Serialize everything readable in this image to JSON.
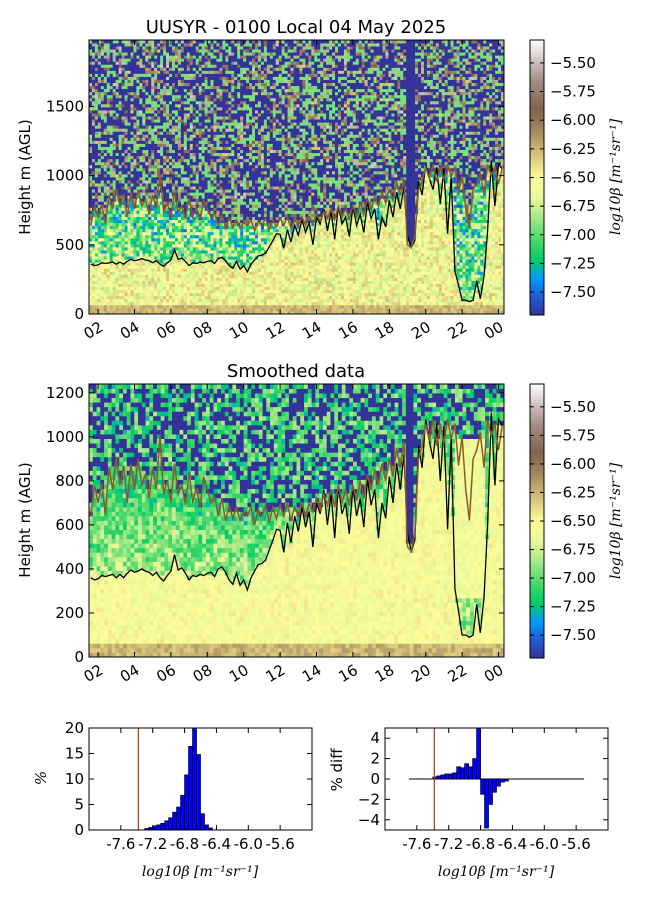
{
  "chart_data": [
    {
      "type": "heatmap",
      "title": "UUSYR - 0100 Local 04 May 2025",
      "ylabel": "Height m (AGL)",
      "xlabel": "",
      "xlim": [
        1.5,
        24.3
      ],
      "ylim": [
        0,
        1980
      ],
      "x_ticks": [
        "02",
        "04",
        "06",
        "08",
        "10",
        "12",
        "14",
        "16",
        "18",
        "20",
        "22",
        "00"
      ],
      "y_ticks": [
        0,
        500,
        1000,
        1500
      ],
      "colorbar": {
        "label": "log10β [m⁻¹sr⁻¹]",
        "ticks": [
          -5.5,
          -5.75,
          -6.0,
          -6.25,
          -6.5,
          -6.75,
          -7.0,
          -7.25,
          -7.5
        ],
        "tick_labels": [
          "−5.50",
          "−5.75",
          "−6.00",
          "−6.25",
          "−6.50",
          "−6.75",
          "−7.00",
          "−7.25",
          "−7.50"
        ],
        "range": [
          -7.7,
          -5.3
        ],
        "colormap": "terrain"
      },
      "series": [
        {
          "color": "#000000",
          "points": [
            [
              1.6,
              360
            ],
            [
              1.8,
              350
            ],
            [
              2.0,
              355
            ],
            [
              2.2,
              370
            ],
            [
              2.4,
              365
            ],
            [
              2.6,
              370
            ],
            [
              2.8,
              375
            ],
            [
              3.0,
              360
            ],
            [
              3.2,
              375
            ],
            [
              3.4,
              360
            ],
            [
              3.6,
              380
            ],
            [
              3.8,
              395
            ],
            [
              4.0,
              385
            ],
            [
              4.2,
              390
            ],
            [
              4.4,
              400
            ],
            [
              4.6,
              390
            ],
            [
              4.8,
              385
            ],
            [
              5.0,
              370
            ],
            [
              5.2,
              385
            ],
            [
              5.4,
              360
            ],
            [
              5.6,
              345
            ],
            [
              5.8,
              370
            ],
            [
              6.0,
              390
            ],
            [
              6.2,
              465
            ],
            [
              6.4,
              395
            ],
            [
              6.6,
              405
            ],
            [
              6.8,
              380
            ],
            [
              7.0,
              350
            ],
            [
              7.2,
              370
            ],
            [
              7.4,
              365
            ],
            [
              7.6,
              375
            ],
            [
              7.8,
              370
            ],
            [
              8.0,
              380
            ],
            [
              8.2,
              385
            ],
            [
              8.4,
              365
            ],
            [
              8.6,
              400
            ],
            [
              8.8,
              410
            ],
            [
              9.0,
              385
            ],
            [
              9.2,
              350
            ],
            [
              9.4,
              330
            ],
            [
              9.6,
              380
            ],
            [
              9.8,
              325
            ],
            [
              10.0,
              350
            ],
            [
              10.2,
              305
            ],
            [
              10.4,
              360
            ],
            [
              10.6,
              390
            ],
            [
              10.8,
              420
            ],
            [
              11.0,
              425
            ],
            [
              11.2,
              440
            ],
            [
              11.4,
              485
            ],
            [
              11.6,
              530
            ],
            [
              11.8,
              580
            ],
            [
              12.0,
              575
            ],
            [
              12.2,
              475
            ],
            [
              12.4,
              610
            ],
            [
              12.6,
              520
            ],
            [
              12.8,
              640
            ],
            [
              13.0,
              570
            ],
            [
              13.2,
              680
            ],
            [
              13.4,
              590
            ],
            [
              13.6,
              660
            ],
            [
              13.8,
              500
            ],
            [
              14.0,
              700
            ],
            [
              14.2,
              650
            ],
            [
              14.4,
              760
            ],
            [
              14.6,
              600
            ],
            [
              14.8,
              740
            ],
            [
              15.0,
              540
            ],
            [
              15.2,
              780
            ],
            [
              15.4,
              650
            ],
            [
              15.6,
              700
            ],
            [
              15.8,
              560
            ],
            [
              16.0,
              780
            ],
            [
              16.2,
              640
            ],
            [
              16.4,
              720
            ],
            [
              16.6,
              590
            ],
            [
              16.8,
              810
            ],
            [
              17.0,
              690
            ],
            [
              17.2,
              760
            ],
            [
              17.4,
              540
            ],
            [
              17.6,
              700
            ],
            [
              17.8,
              630
            ],
            [
              18.0,
              820
            ],
            [
              18.2,
              700
            ],
            [
              18.4,
              880
            ],
            [
              18.6,
              760
            ],
            [
              18.8,
              920
            ],
            [
              19.0,
              560
            ],
            [
              19.2,
              480
            ],
            [
              19.4,
              530
            ],
            [
              19.6,
              960
            ],
            [
              19.8,
              860
            ],
            [
              20.0,
              1080
            ],
            [
              20.2,
              980
            ],
            [
              20.4,
              900
            ],
            [
              20.6,
              1060
            ],
            [
              20.8,
              800
            ],
            [
              21.0,
              1050
            ],
            [
              21.2,
              580
            ],
            [
              21.4,
              1000
            ],
            [
              21.6,
              310
            ],
            [
              21.8,
              210
            ],
            [
              22.0,
              100
            ],
            [
              22.2,
              100
            ],
            [
              22.4,
              90
            ],
            [
              22.6,
              100
            ],
            [
              22.8,
              240
            ],
            [
              23.0,
              110
            ],
            [
              23.2,
              270
            ],
            [
              23.4,
              600
            ],
            [
              23.6,
              1110
            ],
            [
              23.8,
              780
            ],
            [
              24.0,
              1080
            ],
            [
              24.2,
              1050
            ]
          ]
        },
        {
          "color": "#8b5a2b",
          "points": [
            [
              1.6,
              640
            ],
            [
              1.8,
              780
            ],
            [
              2.0,
              700
            ],
            [
              2.2,
              790
            ],
            [
              2.4,
              650
            ],
            [
              2.6,
              860
            ],
            [
              2.8,
              760
            ],
            [
              3.0,
              910
            ],
            [
              3.2,
              780
            ],
            [
              3.4,
              870
            ],
            [
              3.6,
              700
            ],
            [
              3.8,
              880
            ],
            [
              4.0,
              760
            ],
            [
              4.2,
              900
            ],
            [
              4.4,
              780
            ],
            [
              4.6,
              830
            ],
            [
              4.8,
              720
            ],
            [
              5.0,
              860
            ],
            [
              5.2,
              760
            ],
            [
              5.4,
              1010
            ],
            [
              5.6,
              740
            ],
            [
              5.8,
              800
            ],
            [
              6.0,
              700
            ],
            [
              6.2,
              880
            ],
            [
              6.4,
              740
            ],
            [
              6.6,
              780
            ],
            [
              6.8,
              690
            ],
            [
              7.0,
              840
            ],
            [
              7.2,
              700
            ],
            [
              7.4,
              770
            ],
            [
              7.6,
              680
            ],
            [
              7.8,
              820
            ],
            [
              8.0,
              760
            ],
            [
              8.2,
              700
            ],
            [
              8.4,
              730
            ],
            [
              8.6,
              640
            ],
            [
              8.8,
              720
            ],
            [
              9.0,
              620
            ],
            [
              9.2,
              690
            ],
            [
              9.4,
              630
            ],
            [
              9.6,
              680
            ],
            [
              9.8,
              620
            ],
            [
              10.0,
              660
            ],
            [
              10.2,
              640
            ],
            [
              10.4,
              680
            ],
            [
              10.6,
              600
            ],
            [
              10.8,
              670
            ],
            [
              11.0,
              640
            ],
            [
              11.2,
              690
            ],
            [
              11.4,
              610
            ],
            [
              11.6,
              680
            ],
            [
              11.8,
              630
            ],
            [
              12.0,
              690
            ],
            [
              12.2,
              640
            ],
            [
              12.4,
              700
            ],
            [
              12.6,
              620
            ],
            [
              12.8,
              680
            ],
            [
              13.0,
              640
            ],
            [
              13.2,
              700
            ],
            [
              13.4,
              640
            ],
            [
              13.6,
              700
            ],
            [
              13.8,
              660
            ],
            [
              14.0,
              720
            ],
            [
              14.2,
              670
            ],
            [
              14.4,
              740
            ],
            [
              14.6,
              690
            ],
            [
              14.8,
              760
            ],
            [
              15.0,
              680
            ],
            [
              15.2,
              780
            ],
            [
              15.4,
              700
            ],
            [
              15.6,
              760
            ],
            [
              15.8,
              690
            ],
            [
              16.0,
              780
            ],
            [
              16.2,
              710
            ],
            [
              16.4,
              800
            ],
            [
              16.6,
              720
            ],
            [
              16.8,
              830
            ],
            [
              17.0,
              760
            ],
            [
              17.2,
              850
            ],
            [
              17.4,
              780
            ],
            [
              17.6,
              880
            ],
            [
              17.8,
              800
            ],
            [
              18.0,
              900
            ],
            [
              18.2,
              820
            ],
            [
              18.4,
              950
            ],
            [
              18.6,
              860
            ],
            [
              18.8,
              980
            ],
            [
              19.0,
              500
            ],
            [
              19.2,
              480
            ],
            [
              19.4,
              560
            ],
            [
              19.6,
              900
            ],
            [
              19.8,
              960
            ],
            [
              20.0,
              1060
            ],
            [
              20.2,
              980
            ],
            [
              20.4,
              1080
            ],
            [
              20.6,
              960
            ],
            [
              20.8,
              1060
            ],
            [
              21.0,
              970
            ],
            [
              21.2,
              1080
            ],
            [
              21.4,
              990
            ],
            [
              21.6,
              1060
            ],
            [
              21.8,
              870
            ],
            [
              22.0,
              1000
            ],
            [
              22.2,
              760
            ],
            [
              22.4,
              620
            ],
            [
              22.6,
              900
            ],
            [
              22.8,
              940
            ],
            [
              23.0,
              1020
            ],
            [
              23.2,
              860
            ],
            [
              23.4,
              1080
            ],
            [
              23.6,
              1000
            ],
            [
              23.8,
              1060
            ],
            [
              24.0,
              940
            ],
            [
              24.2,
              1050
            ]
          ]
        }
      ]
    },
    {
      "type": "heatmap",
      "title": "Smoothed data",
      "ylabel": "Height m (AGL)",
      "xlabel": "",
      "xlim": [
        1.5,
        24.3
      ],
      "ylim": [
        0,
        1240
      ],
      "x_ticks": [
        "02",
        "04",
        "06",
        "08",
        "10",
        "12",
        "14",
        "16",
        "18",
        "20",
        "22",
        "00"
      ],
      "y_ticks": [
        0,
        200,
        400,
        600,
        800,
        1000,
        1200
      ],
      "colorbar": {
        "label": "log10β [m⁻¹sr⁻¹]",
        "ticks": [
          -5.5,
          -5.75,
          -6.0,
          -6.25,
          -6.5,
          -6.75,
          -7.0,
          -7.25,
          -7.5
        ],
        "tick_labels": [
          "−5.50",
          "−5.75",
          "−6.00",
          "−6.25",
          "−6.50",
          "−6.75",
          "−7.00",
          "−7.25",
          "−7.50"
        ],
        "range": [
          -7.7,
          -5.3
        ],
        "colormap": "terrain"
      }
    },
    {
      "type": "bar",
      "title": "",
      "ylabel": "%",
      "xlabel": "log10β [m⁻¹sr⁻¹]",
      "xlim": [
        -8.0,
        -5.2
      ],
      "ylim": [
        0,
        20
      ],
      "x_ticks": [
        -7.6,
        -7.2,
        -6.8,
        -6.4,
        -6.0,
        -5.6
      ],
      "x_tick_labels": [
        "-7.6",
        "-7.2",
        "-6.8",
        "-6.4",
        "-6.0",
        "-5.6"
      ],
      "y_ticks": [
        0,
        5,
        10,
        15,
        20
      ],
      "vline": -7.38,
      "bins": [
        -7.3,
        -7.25,
        -7.2,
        -7.15,
        -7.1,
        -7.05,
        -7.0,
        -6.95,
        -6.9,
        -6.85,
        -6.8,
        -6.75,
        -6.7,
        -6.65,
        -6.6,
        -6.55,
        -6.5
      ],
      "bin_width": 0.05,
      "values": [
        0.3,
        0.5,
        0.8,
        1.0,
        1.3,
        1.8,
        2.4,
        3.5,
        4.5,
        6.8,
        10.8,
        16.4,
        20.0,
        14.8,
        3.2,
        1.0,
        0.4
      ]
    },
    {
      "type": "bar",
      "title": "",
      "ylabel": "% diff",
      "xlabel": "log10β [m⁻¹sr⁻¹]",
      "xlim": [
        -8.0,
        -5.2
      ],
      "ylim": [
        -5,
        5
      ],
      "x_ticks": [
        -7.6,
        -7.2,
        -6.8,
        -6.4,
        -6.0,
        -5.6
      ],
      "x_tick_labels": [
        "-7.6",
        "-7.2",
        "-6.8",
        "-6.4",
        "-6.0",
        "-5.6"
      ],
      "y_ticks": [
        -4,
        -2,
        0,
        2,
        4
      ],
      "y_tick_labels": [
        "−4",
        "−2",
        "0",
        "2",
        "4"
      ],
      "vline": -7.38,
      "baseline_range": [
        -7.7,
        -5.5
      ],
      "bins": [
        -7.4,
        -7.35,
        -7.3,
        -7.25,
        -7.2,
        -7.15,
        -7.1,
        -7.05,
        -7.0,
        -6.95,
        -6.9,
        -6.85,
        -6.8,
        -6.75,
        -6.7,
        -6.65,
        -6.6,
        -6.55,
        -6.5
      ],
      "bin_width": 0.05,
      "values": [
        0.2,
        0.3,
        0.4,
        0.5,
        0.5,
        0.6,
        1.2,
        1.1,
        1.5,
        1.2,
        2.0,
        5.0,
        -1.5,
        -4.8,
        -2.5,
        -1.3,
        -0.7,
        -0.3,
        -0.2
      ]
    }
  ]
}
